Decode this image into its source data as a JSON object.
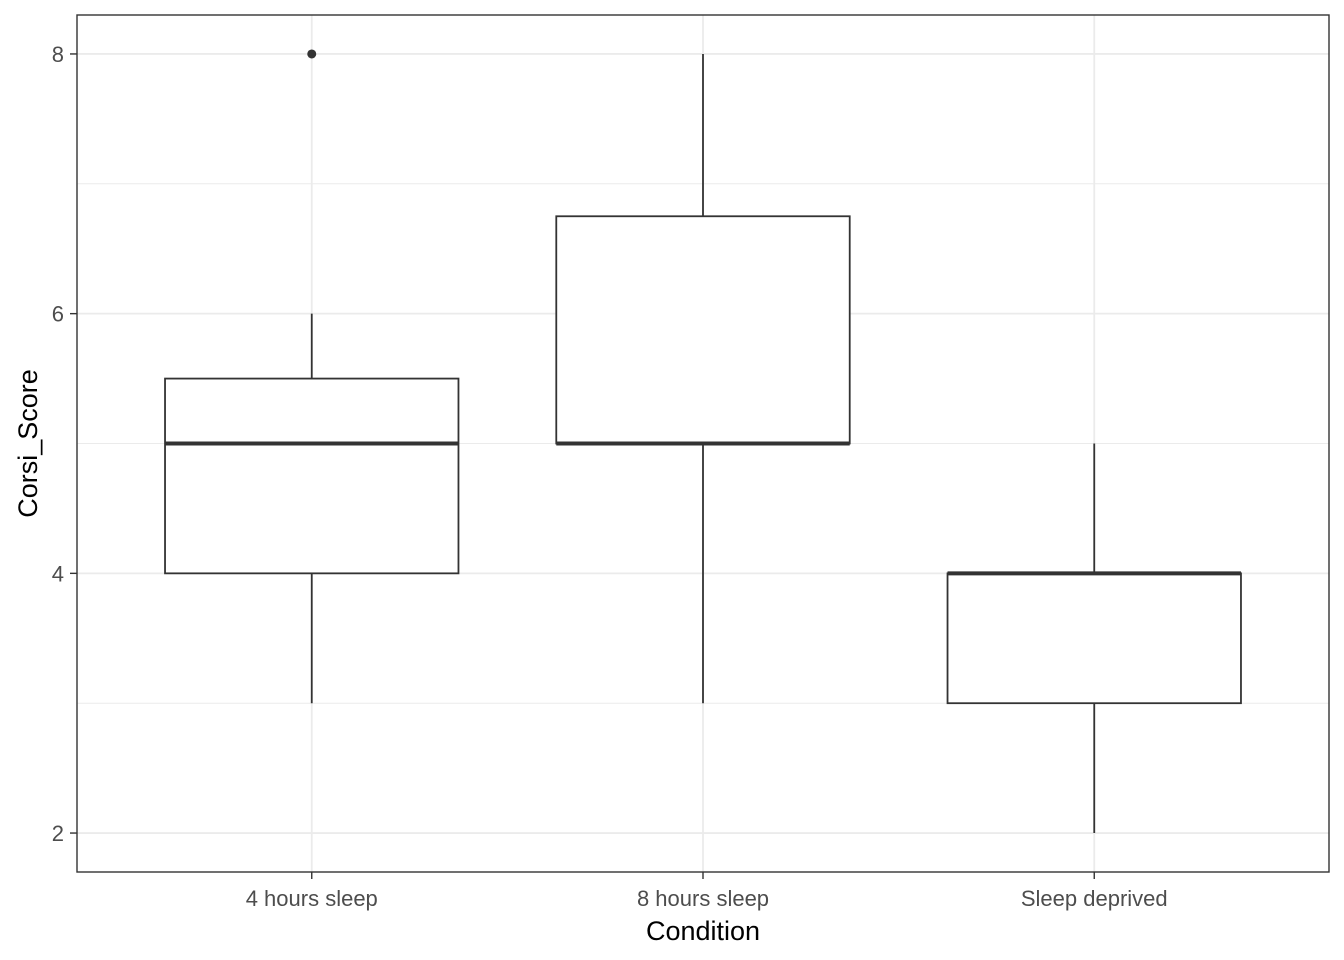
{
  "chart_data": {
    "type": "boxplot",
    "xlabel": "Condition",
    "ylabel": "Corsi_Score",
    "categories": [
      "4 hours sleep",
      "8 hours sleep",
      "Sleep deprived"
    ],
    "boxes": [
      {
        "category": "4 hours sleep",
        "whisker_low": 3,
        "q1": 4,
        "median": 5,
        "q3": 5.5,
        "whisker_high": 6,
        "outliers": [
          8
        ]
      },
      {
        "category": "8 hours sleep",
        "whisker_low": 3,
        "q1": 5,
        "median": 5,
        "q3": 6.75,
        "whisker_high": 8,
        "outliers": []
      },
      {
        "category": "Sleep deprived",
        "whisker_low": 2,
        "q1": 3,
        "median": 4,
        "q3": 4,
        "whisker_high": 5,
        "outliers": []
      }
    ],
    "ylim": [
      1.7,
      8.3
    ],
    "yticks": [
      2,
      4,
      6,
      8
    ],
    "grid": true,
    "legend": "none",
    "colors": {
      "box_fill": "#ffffff",
      "box_line": "#333333",
      "grid": "#ebebeb",
      "panel_border": "#333333"
    }
  }
}
